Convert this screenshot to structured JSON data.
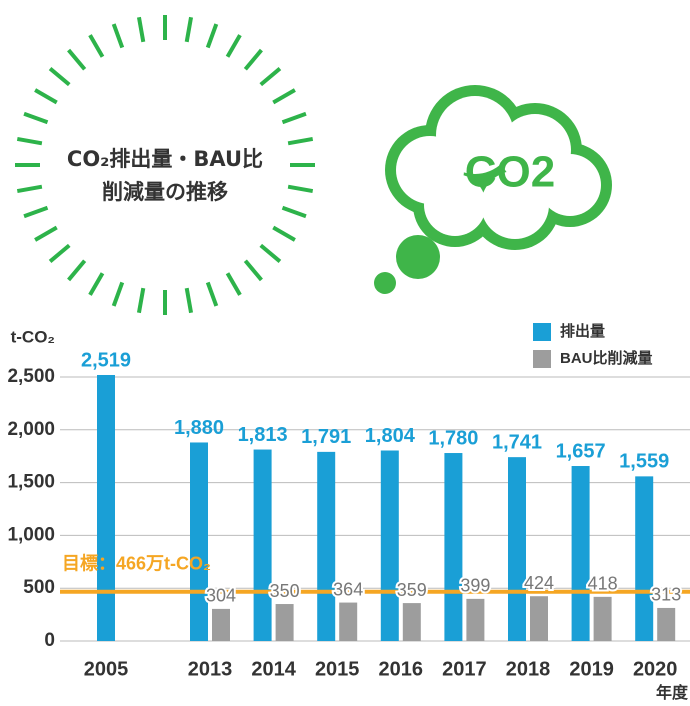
{
  "header": {
    "title_lines": [
      "CO₂排出量・BAU比",
      "削減量の推移"
    ],
    "icon_text": "CO2"
  },
  "chart_data": {
    "type": "bar",
    "y_label": "t-CO₂",
    "x_unit": "年度",
    "categories": [
      "2005",
      "2013",
      "2014",
      "2015",
      "2016",
      "2017",
      "2018",
      "2019",
      "2020"
    ],
    "series": [
      {
        "name": "排出量",
        "color": "#1a9fd6",
        "values": [
          2519,
          1880,
          1813,
          1791,
          1804,
          1780,
          1741,
          1657,
          1559
        ],
        "value_labels": [
          "2,519",
          "1,880",
          "1,813",
          "1,791",
          "1,804",
          "1,780",
          "1,741",
          "1,657",
          "1,559"
        ]
      },
      {
        "name": "BAU比削減量",
        "color": "#9d9d9d",
        "values": [
          null,
          304,
          350,
          364,
          359,
          399,
          424,
          418,
          313
        ]
      }
    ],
    "ylim": [
      0,
      2500
    ],
    "yticks": [
      0,
      500,
      {
        "value": 1000,
        "label": "1,000"
      },
      {
        "value": 1500,
        "label": "1,500"
      },
      {
        "value": 2000,
        "label": "2,000"
      },
      {
        "value": 2500,
        "label": "2,500"
      }
    ],
    "grid": true,
    "target": {
      "value": 466,
      "label": "目標：466万t-CO₂",
      "color": "#f5a623"
    }
  }
}
